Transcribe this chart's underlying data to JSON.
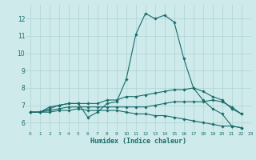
{
  "title": "",
  "xlabel": "Humidex (Indice chaleur)",
  "ylabel": "",
  "bg_color": "#ceeaea",
  "grid_color": "#add4d4",
  "line_color": "#1a6b6b",
  "xlim": [
    -0.5,
    23
  ],
  "ylim": [
    5.5,
    12.8
  ],
  "xticks": [
    0,
    1,
    2,
    3,
    4,
    5,
    6,
    7,
    8,
    9,
    10,
    11,
    12,
    13,
    14,
    15,
    16,
    17,
    18,
    19,
    20,
    21,
    22,
    23
  ],
  "yticks": [
    6,
    7,
    8,
    9,
    10,
    11,
    12
  ],
  "series": [
    {
      "x": [
        0,
        1,
        2,
        3,
        4,
        5,
        6,
        7,
        8,
        9,
        10,
        11,
        12,
        13,
        14,
        15,
        16,
        17,
        18,
        19,
        20,
        21,
        22
      ],
      "y": [
        6.6,
        6.6,
        6.9,
        7.0,
        7.1,
        7.1,
        6.3,
        6.6,
        7.1,
        7.2,
        8.5,
        11.1,
        12.3,
        12.0,
        12.2,
        11.8,
        9.7,
        8.0,
        7.3,
        6.8,
        6.5,
        5.8,
        5.7
      ]
    },
    {
      "x": [
        0,
        1,
        2,
        3,
        4,
        5,
        6,
        7,
        8,
        9,
        10,
        11,
        12,
        13,
        14,
        15,
        16,
        17,
        18,
        19,
        20,
        21,
        22
      ],
      "y": [
        6.6,
        6.6,
        6.8,
        7.0,
        7.1,
        7.1,
        7.1,
        7.1,
        7.3,
        7.3,
        7.5,
        7.5,
        7.6,
        7.7,
        7.8,
        7.9,
        7.9,
        8.0,
        7.8,
        7.5,
        7.3,
        6.8,
        6.5
      ]
    },
    {
      "x": [
        0,
        1,
        2,
        3,
        4,
        5,
        6,
        7,
        8,
        9,
        10,
        11,
        12,
        13,
        14,
        15,
        16,
        17,
        18,
        19,
        20,
        21,
        22
      ],
      "y": [
        6.6,
        6.6,
        6.7,
        6.8,
        6.9,
        6.9,
        6.9,
        6.9,
        6.9,
        6.9,
        6.9,
        6.9,
        6.9,
        7.0,
        7.1,
        7.2,
        7.2,
        7.2,
        7.2,
        7.3,
        7.2,
        6.9,
        6.5
      ]
    },
    {
      "x": [
        0,
        1,
        2,
        3,
        4,
        5,
        6,
        7,
        8,
        9,
        10,
        11,
        12,
        13,
        14,
        15,
        16,
        17,
        18,
        19,
        20,
        21,
        22
      ],
      "y": [
        6.6,
        6.6,
        6.6,
        6.7,
        6.7,
        6.8,
        6.7,
        6.7,
        6.7,
        6.7,
        6.6,
        6.5,
        6.5,
        6.4,
        6.4,
        6.3,
        6.2,
        6.1,
        6.0,
        5.9,
        5.8,
        5.8,
        5.7
      ]
    }
  ]
}
